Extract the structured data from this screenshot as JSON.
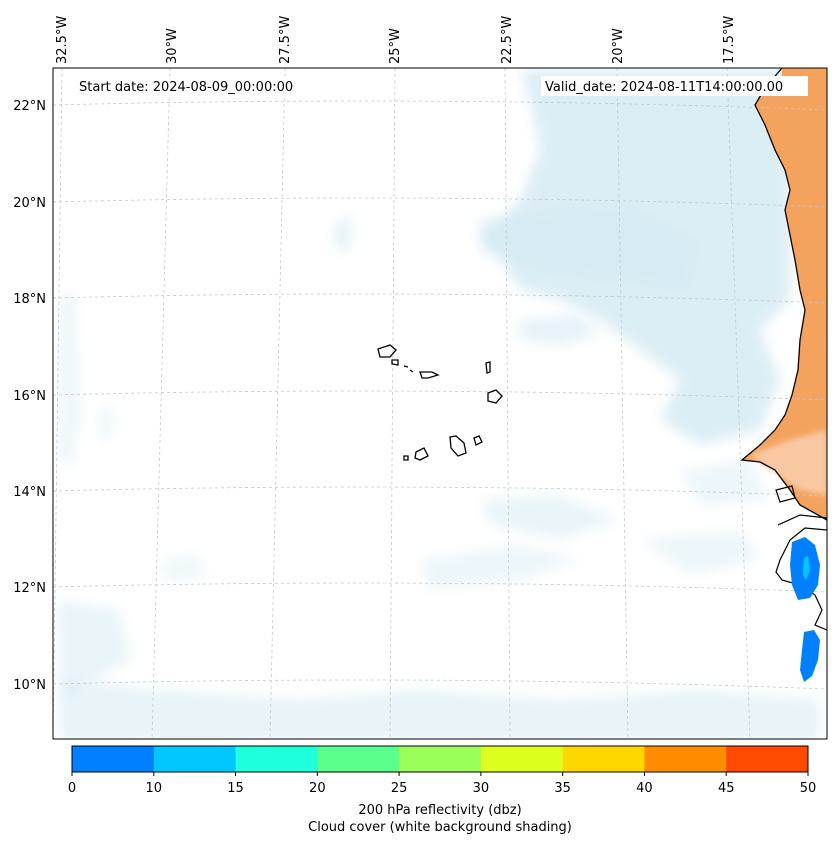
{
  "map": {
    "start_date": "Start date: 2024-08-09_00:00:00",
    "valid_date": "Valid_date: 2024-08-11T14:00:00.00",
    "lon_labels": [
      "32.5°W",
      "30°W",
      "27.5°W",
      "25°W",
      "22.5°W",
      "20°W",
      "17.5°W"
    ],
    "lat_labels": [
      "22°N",
      "20°N",
      "18°N",
      "16°N",
      "14°N",
      "12°N",
      "10°N"
    ]
  },
  "colorbar": {
    "ticks": [
      "0",
      "10",
      "15",
      "20",
      "25",
      "30",
      "35",
      "40",
      "45",
      "50"
    ],
    "colors": [
      "#007fff",
      "#00c8ff",
      "#1effdc",
      "#5aff8c",
      "#9bff5a",
      "#dcff1e",
      "#ffd700",
      "#ff8c00",
      "#ff4a00"
    ],
    "label_line1": "200 hPa reflectivity (dbz)",
    "label_line2": "Cloud cover (white background shading)"
  },
  "colors": {
    "cloud": "#d6ebf3",
    "land_orange": "#f4a35f",
    "coast": "#000000",
    "grid": "#c8c8c8"
  }
}
